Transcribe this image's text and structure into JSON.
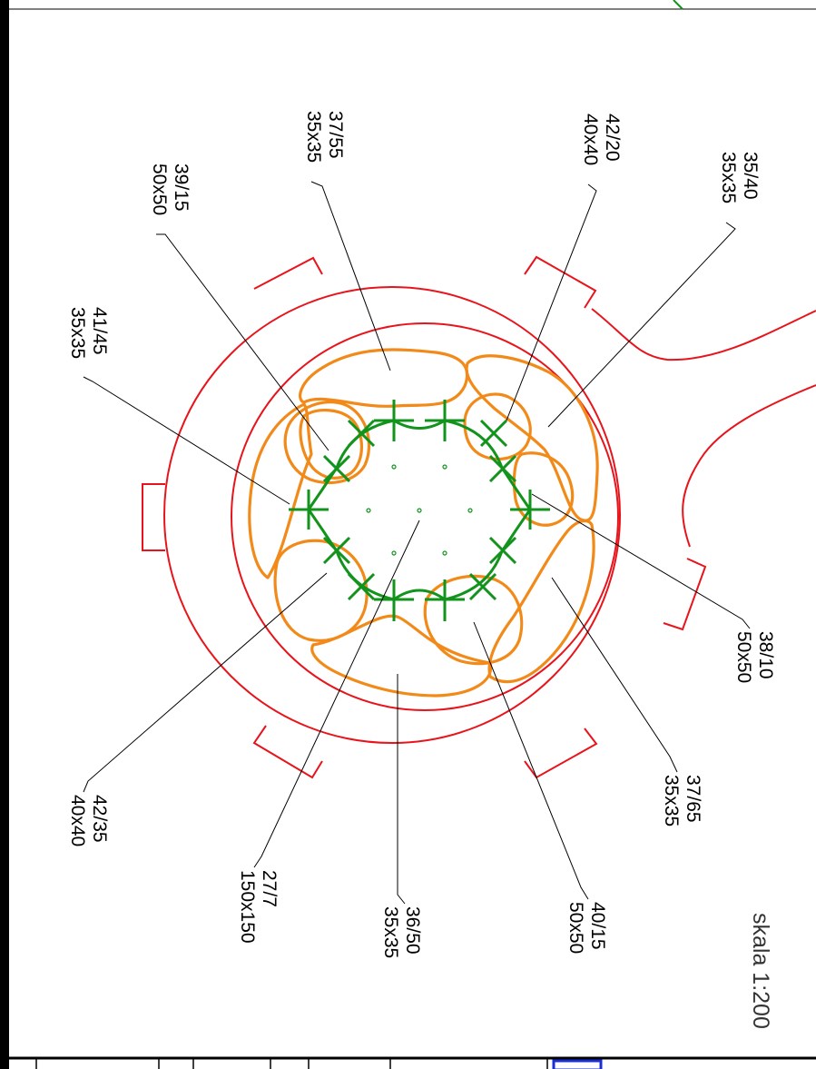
{
  "scale_label": "skala 1:200",
  "labels": [
    {
      "id": "39-15",
      "line1": "39/15",
      "line2": "50x50"
    },
    {
      "id": "37-55",
      "line1": "37/55",
      "line2": "35x35"
    },
    {
      "id": "42-20",
      "line1": "42/20",
      "line2": "40x40"
    },
    {
      "id": "35-40",
      "line1": "35/40",
      "line2": "35x35"
    },
    {
      "id": "41-45",
      "line1": "41/45",
      "line2": "35x35"
    },
    {
      "id": "38-10",
      "line1": "38/10",
      "line2": "50x50"
    },
    {
      "id": "37-65",
      "line1": "37/65",
      "line2": "35x35"
    },
    {
      "id": "42-35",
      "line1": "42/35",
      "line2": "40x40"
    },
    {
      "id": "27-7",
      "line1": "27/7",
      "line2": "150x150"
    },
    {
      "id": "36-50",
      "line1": "36/50",
      "line2": "35x35"
    },
    {
      "id": "40-15",
      "line1": "40/15",
      "line2": "50x50"
    }
  ],
  "colors": {
    "outer_ring": "#e8141b",
    "pits": "#f28a1a",
    "central_pit": "#11931c",
    "leaders": "#000000"
  }
}
